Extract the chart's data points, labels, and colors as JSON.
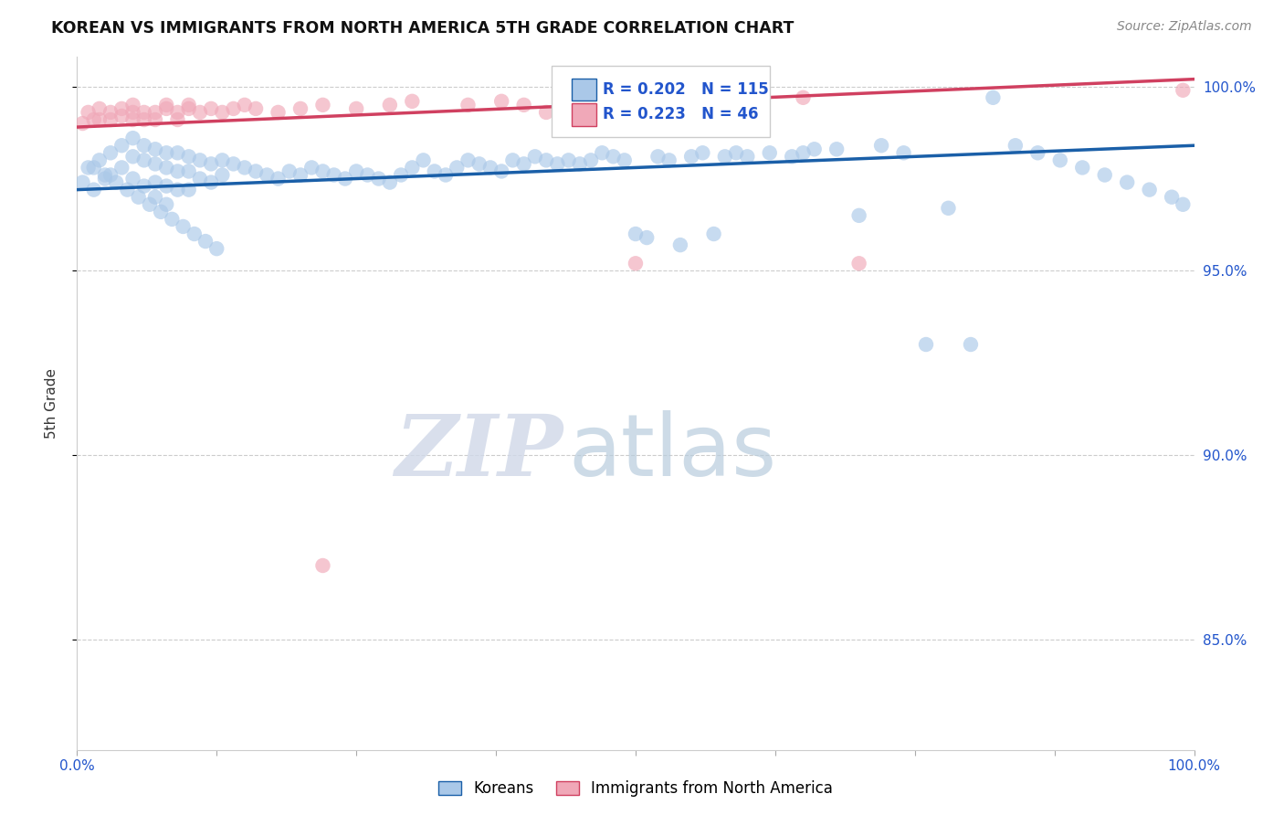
{
  "title": "KOREAN VS IMMIGRANTS FROM NORTH AMERICA 5TH GRADE CORRELATION CHART",
  "source": "Source: ZipAtlas.com",
  "ylabel": "5th Grade",
  "xlim": [
    0.0,
    1.0
  ],
  "ylim": [
    0.82,
    1.008
  ],
  "yticks": [
    0.85,
    0.9,
    0.95,
    1.0
  ],
  "ytick_labels": [
    "85.0%",
    "90.0%",
    "95.0%",
    "100.0%"
  ],
  "korean_color": "#aac8e8",
  "immigrant_color": "#f0a8b8",
  "line_korean_color": "#1a5fa8",
  "line_immigrant_color": "#d04060",
  "legend_r_korean": "R = 0.202",
  "legend_n_korean": "N = 115",
  "legend_r_immigrant": "R = 0.223",
  "legend_n_immigrant": "N = 46",
  "watermark_zip": "ZIP",
  "watermark_atlas": "atlas",
  "korean_x": [
    0.005,
    0.01,
    0.015,
    0.02,
    0.025,
    0.03,
    0.03,
    0.04,
    0.04,
    0.05,
    0.05,
    0.05,
    0.06,
    0.06,
    0.06,
    0.07,
    0.07,
    0.07,
    0.07,
    0.08,
    0.08,
    0.08,
    0.08,
    0.09,
    0.09,
    0.09,
    0.1,
    0.1,
    0.1,
    0.11,
    0.11,
    0.12,
    0.12,
    0.13,
    0.13,
    0.14,
    0.15,
    0.16,
    0.17,
    0.18,
    0.19,
    0.2,
    0.21,
    0.22,
    0.23,
    0.24,
    0.25,
    0.26,
    0.27,
    0.28,
    0.29,
    0.3,
    0.31,
    0.32,
    0.33,
    0.34,
    0.35,
    0.36,
    0.37,
    0.38,
    0.39,
    0.4,
    0.41,
    0.42,
    0.43,
    0.44,
    0.45,
    0.46,
    0.47,
    0.48,
    0.49,
    0.5,
    0.51,
    0.52,
    0.53,
    0.54,
    0.55,
    0.56,
    0.57,
    0.58,
    0.59,
    0.6,
    0.62,
    0.64,
    0.65,
    0.66,
    0.68,
    0.7,
    0.72,
    0.74,
    0.76,
    0.78,
    0.8,
    0.82,
    0.84,
    0.86,
    0.88,
    0.9,
    0.92,
    0.94,
    0.96,
    0.98,
    0.99,
    0.015,
    0.025,
    0.035,
    0.045,
    0.055,
    0.065,
    0.075,
    0.085,
    0.095,
    0.105,
    0.115,
    0.125
  ],
  "korean_y": [
    0.974,
    0.978,
    0.972,
    0.98,
    0.975,
    0.982,
    0.976,
    0.984,
    0.978,
    0.986,
    0.981,
    0.975,
    0.984,
    0.98,
    0.973,
    0.983,
    0.979,
    0.974,
    0.97,
    0.982,
    0.978,
    0.973,
    0.968,
    0.982,
    0.977,
    0.972,
    0.981,
    0.977,
    0.972,
    0.98,
    0.975,
    0.979,
    0.974,
    0.98,
    0.976,
    0.979,
    0.978,
    0.977,
    0.976,
    0.975,
    0.977,
    0.976,
    0.978,
    0.977,
    0.976,
    0.975,
    0.977,
    0.976,
    0.975,
    0.974,
    0.976,
    0.978,
    0.98,
    0.977,
    0.976,
    0.978,
    0.98,
    0.979,
    0.978,
    0.977,
    0.98,
    0.979,
    0.981,
    0.98,
    0.979,
    0.98,
    0.979,
    0.98,
    0.982,
    0.981,
    0.98,
    0.96,
    0.959,
    0.981,
    0.98,
    0.957,
    0.981,
    0.982,
    0.96,
    0.981,
    0.982,
    0.981,
    0.982,
    0.981,
    0.982,
    0.983,
    0.983,
    0.965,
    0.984,
    0.982,
    0.93,
    0.967,
    0.93,
    0.997,
    0.984,
    0.982,
    0.98,
    0.978,
    0.976,
    0.974,
    0.972,
    0.97,
    0.968,
    0.978,
    0.976,
    0.974,
    0.972,
    0.97,
    0.968,
    0.966,
    0.964,
    0.962,
    0.96,
    0.958,
    0.956
  ],
  "immigrant_x": [
    0.005,
    0.01,
    0.015,
    0.02,
    0.02,
    0.03,
    0.03,
    0.04,
    0.04,
    0.05,
    0.05,
    0.05,
    0.06,
    0.06,
    0.07,
    0.07,
    0.08,
    0.08,
    0.09,
    0.09,
    0.1,
    0.1,
    0.11,
    0.12,
    0.13,
    0.14,
    0.15,
    0.16,
    0.18,
    0.2,
    0.22,
    0.25,
    0.28,
    0.3,
    0.35,
    0.38,
    0.4,
    0.42,
    0.45,
    0.5,
    0.55,
    0.6,
    0.65,
    0.7,
    0.22,
    0.99
  ],
  "immigrant_y": [
    0.99,
    0.993,
    0.991,
    0.994,
    0.991,
    0.993,
    0.991,
    0.994,
    0.992,
    0.995,
    0.993,
    0.991,
    0.993,
    0.991,
    0.993,
    0.991,
    0.994,
    0.995,
    0.993,
    0.991,
    0.994,
    0.995,
    0.993,
    0.994,
    0.993,
    0.994,
    0.995,
    0.994,
    0.993,
    0.994,
    0.995,
    0.994,
    0.995,
    0.996,
    0.995,
    0.996,
    0.995,
    0.993,
    0.995,
    0.952,
    0.995,
    0.996,
    0.997,
    0.952,
    0.87,
    0.999
  ],
  "korean_line_x0": 0.0,
  "korean_line_y0": 0.972,
  "korean_line_x1": 1.0,
  "korean_line_y1": 0.984,
  "immigrant_line_x0": 0.0,
  "immigrant_line_y0": 0.989,
  "immigrant_line_x1": 1.0,
  "immigrant_line_y1": 1.002
}
